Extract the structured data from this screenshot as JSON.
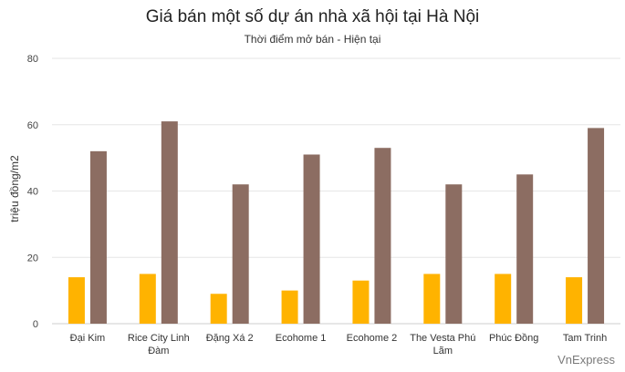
{
  "chart_data": {
    "type": "bar",
    "title": "Giá bán một số dự án nhà xã hội tại Hà Nội",
    "subtitle": "Thời điểm mở bán - Hiện tại",
    "xlabel": "",
    "ylabel": "triệu đồng/m2",
    "ylim": [
      0,
      80
    ],
    "yticks": [
      0,
      20,
      40,
      60,
      80
    ],
    "grid": true,
    "categories": [
      [
        "Đại Kim"
      ],
      [
        "Rice City Linh",
        "Đàm"
      ],
      [
        "Đặng Xá 2"
      ],
      [
        "Ecohome 1"
      ],
      [
        "Ecohome 2"
      ],
      [
        "The Vesta Phú",
        "Lãm"
      ],
      [
        "Phúc Đồng"
      ],
      [
        "Tam Trinh"
      ]
    ],
    "series": [
      {
        "color": "#FFB300",
        "values": [
          14,
          15,
          9,
          10,
          13,
          15,
          15,
          14
        ]
      },
      {
        "color": "#8C6D62",
        "values": [
          52,
          61,
          42,
          51,
          53,
          42,
          45,
          59
        ]
      }
    ]
  },
  "watermark": "VnExpress"
}
